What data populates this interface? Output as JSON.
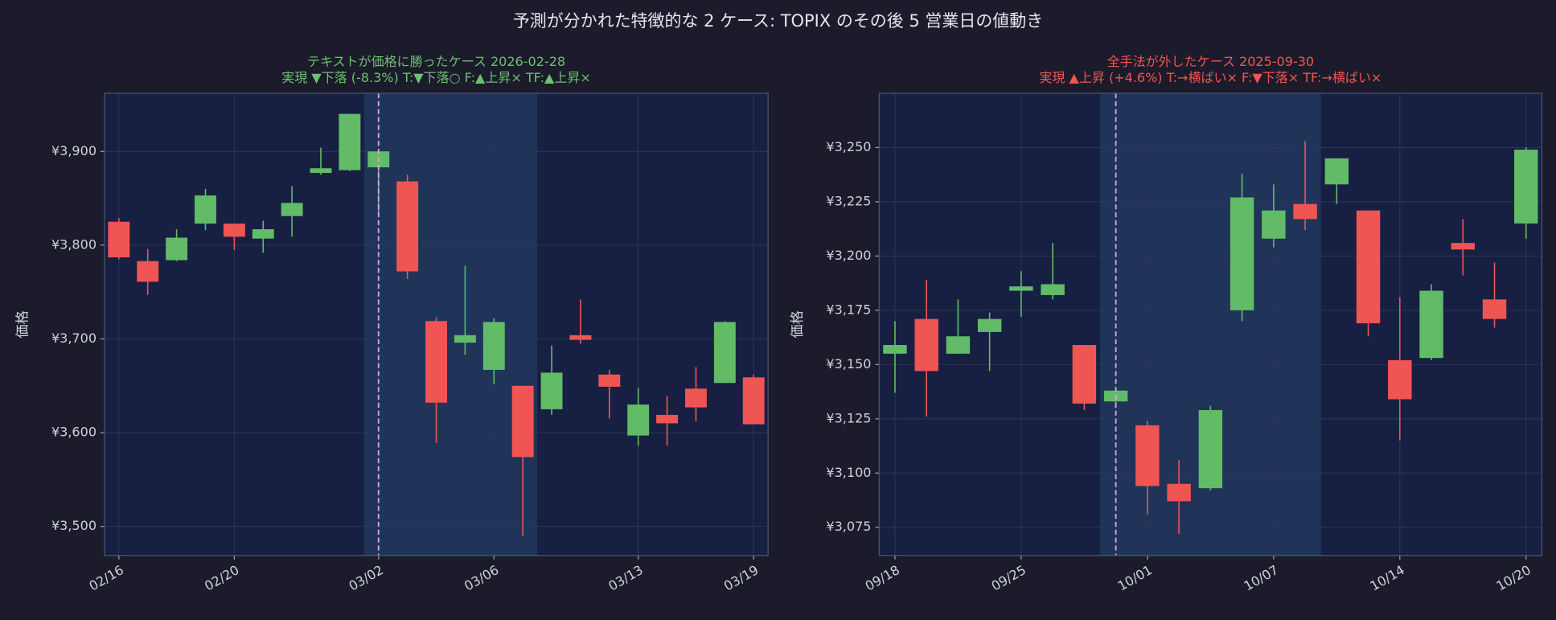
{
  "title": "予測が分かれた特徴的な 2 ケース: TOPIX のその後 5 営業日の値動き",
  "chart_data": [
    {
      "type": "candlestick",
      "title": "テキストが価格に勝ったケース  2026-02-28",
      "subtitle": "実現 ▼下落 (-8.3%)  T:▼下落○  F:▲上昇×  TF:▲上昇×",
      "title_color": "#6cc070",
      "ylabel": "価格",
      "categories": [
        "02/16",
        null,
        null,
        null,
        "02/20",
        null,
        null,
        null,
        null,
        "03/02",
        null,
        null,
        null,
        "03/06",
        null,
        null,
        null,
        null,
        "03/13",
        null,
        null,
        null,
        "03/19"
      ],
      "open": [
        3825,
        3783,
        3784,
        3823,
        3823,
        3807,
        3831,
        3877,
        3880,
        3883,
        3868,
        3719,
        3696,
        3667,
        3650,
        3625,
        3704,
        3662,
        3597,
        3619,
        3647,
        3653,
        3659
      ],
      "high": [
        3829,
        3796,
        3817,
        3860,
        3823,
        3826,
        3863,
        3904,
        3940,
        3900,
        3875,
        3723,
        3778,
        3722,
        3650,
        3693,
        3742,
        3667,
        3648,
        3639,
        3670,
        3719,
        3662
      ],
      "low": [
        3785,
        3747,
        3783,
        3816,
        3795,
        3792,
        3809,
        3875,
        3879,
        3833,
        3764,
        3589,
        3683,
        3652,
        3490,
        3619,
        3695,
        3615,
        3586,
        3586,
        3612,
        3653,
        3609
      ],
      "close": [
        3787,
        3761,
        3808,
        3853,
        3809,
        3817,
        3845,
        3882,
        3940,
        3900,
        3772,
        3632,
        3704,
        3718,
        3574,
        3664,
        3699,
        3649,
        3630,
        3610,
        3627,
        3718,
        3609
      ],
      "up_color": "#62bb67",
      "down_color": "#ef5552",
      "xlim": [
        -0.5,
        22.5
      ],
      "ylim": [
        3469,
        3962
      ],
      "yticks": [
        {
          "value": 3500,
          "label": "¥3,500"
        },
        {
          "value": 3600,
          "label": "¥3,600"
        },
        {
          "value": 3700,
          "label": "¥3,700"
        },
        {
          "value": 3800,
          "label": "¥3,800"
        },
        {
          "value": 3900,
          "label": "¥3,900"
        }
      ],
      "grid": true
    },
    {
      "type": "candlestick",
      "title": "全手法が外したケース  2025-09-30",
      "subtitle": "実現 ▲上昇 (+4.6%)  T:→横ばい×  F:▼下落×  TF:→横ばい×",
      "title_color": "#ef5552",
      "ylabel": "価格",
      "categories": [
        "09/18",
        null,
        null,
        null,
        "09/25",
        null,
        null,
        null,
        "10/01",
        null,
        null,
        null,
        "10/07",
        null,
        null,
        null,
        "10/14",
        null,
        null,
        null,
        "10/20"
      ],
      "open": [
        3155,
        3171,
        3155,
        3165,
        3184,
        3182,
        3159,
        3133,
        3122,
        3095,
        3093,
        3175,
        3208,
        3224,
        3233,
        3221,
        3152,
        3153,
        3206,
        3180,
        3215
      ],
      "high": [
        3170,
        3189,
        3180,
        3174,
        3193,
        3206,
        3159,
        3138,
        3124,
        3106,
        3131,
        3238,
        3233,
        3253,
        3245,
        3221,
        3181,
        3187,
        3217,
        3197,
        3250
      ],
      "low": [
        3137,
        3126,
        3155,
        3147,
        3172,
        3180,
        3129,
        3130,
        3081,
        3072,
        3092,
        3170,
        3204,
        3212,
        3224,
        3163,
        3115,
        3152,
        3191,
        3167,
        3208
      ],
      "close": [
        3159,
        3147,
        3163,
        3171,
        3186,
        3187,
        3132,
        3138,
        3094,
        3087,
        3129,
        3227,
        3221,
        3217,
        3245,
        3169,
        3134,
        3184,
        3203,
        3171,
        3249
      ],
      "up_color": "#62bb67",
      "down_color": "#ef5552",
      "xlim": [
        -0.5,
        20.5
      ],
      "ylim": [
        3062,
        3275
      ],
      "yticks": [
        {
          "value": 3075,
          "label": "¥3,075"
        },
        {
          "value": 3100,
          "label": "¥3,100"
        },
        {
          "value": 3125,
          "label": "¥3,125"
        },
        {
          "value": 3150,
          "label": "¥3,150"
        },
        {
          "value": 3175,
          "label": "¥3,175"
        },
        {
          "value": 3200,
          "label": "¥3,200"
        },
        {
          "value": 3225,
          "label": "¥3,225"
        },
        {
          "value": 3250,
          "label": "¥3,250"
        }
      ],
      "grid": true
    }
  ]
}
